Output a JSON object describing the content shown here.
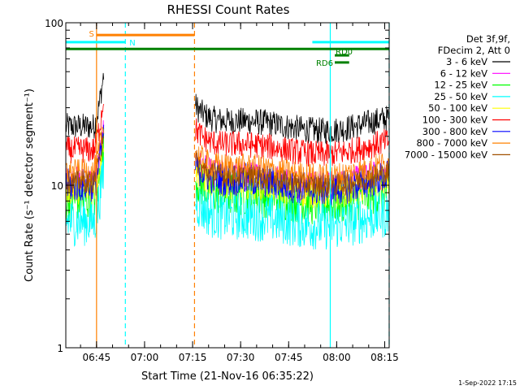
{
  "chart_data": {
    "type": "line",
    "title": "RHESSI Count Rates",
    "xlabel": "Start Time (21-Nov-16 06:35:22)",
    "ylabel": "Count Rate (s⁻¹ detector segment⁻¹)",
    "yscale": "log",
    "ylim": [
      1,
      100
    ],
    "xlim_minutes": [
      0,
      101
    ],
    "x_ticks": [
      {
        "label": "06:45",
        "t": 9.6
      },
      {
        "label": "07:00",
        "t": 24.6
      },
      {
        "label": "07:15",
        "t": 39.6
      },
      {
        "label": "07:30",
        "t": 54.6
      },
      {
        "label": "07:45",
        "t": 69.6
      },
      {
        "label": "08:00",
        "t": 84.6
      },
      {
        "label": "08:15",
        "t": 99.6
      }
    ],
    "y_ticks": [
      {
        "label": "1",
        "v": 1
      },
      {
        "label": "10",
        "v": 10
      },
      {
        "label": "100",
        "v": 100
      }
    ],
    "legend_header": [
      "Det 3f,9f,",
      "FDecim 2, Att 0"
    ],
    "legend_position": "right",
    "series": [
      {
        "name": "3 - 6 keV",
        "color": "#000000",
        "base": 23,
        "amp": 0.12
      },
      {
        "name": "6 - 12 keV",
        "color": "#ff00ff",
        "base": 10.5,
        "amp": 0.14
      },
      {
        "name": "12 - 25 keV",
        "color": "#00ff00",
        "base": 8.2,
        "amp": 0.2
      },
      {
        "name": "25 - 50 keV",
        "color": "#00ffff",
        "base": 6.0,
        "amp": 0.22
      },
      {
        "name": "50 - 100 keV",
        "color": "#ffff00",
        "base": 9.5,
        "amp": 0.14
      },
      {
        "name": "100 - 300 keV",
        "color": "#ff0000",
        "base": 16.5,
        "amp": 0.12
      },
      {
        "name": "300 - 800 keV",
        "color": "#0000ff",
        "base": 10.0,
        "amp": 0.15
      },
      {
        "name": "800 - 7000 keV",
        "color": "#ff8000",
        "base": 12.0,
        "amp": 0.12
      },
      {
        "name": "7000 - 15000 keV",
        "color": "#a05000",
        "base": 10.5,
        "amp": 0.1
      }
    ],
    "data_segments_minutes": [
      [
        0,
        12
      ],
      [
        40.5,
        101
      ]
    ],
    "flags": [
      {
        "label": "S",
        "color": "#ff8000",
        "t_start": 9.6,
        "t_end": 40.2,
        "level": 84
      },
      {
        "label": "N",
        "color": "#00ffff",
        "t_start": 0,
        "t_end": 18.6,
        "level": 76
      },
      {
        "label": "",
        "color": "#008000",
        "t_start": 0,
        "t_end": 101,
        "level": 69
      },
      {
        "label": "",
        "color": "#00ffff",
        "t_start": 77,
        "t_end": 101,
        "level": 76
      },
      {
        "label": "RD0",
        "color": "#008000",
        "t_start": 84,
        "t_end": 88.5,
        "level": 63
      },
      {
        "label": "RD6",
        "color": "#008000",
        "t_start": 84,
        "t_end": 88.5,
        "level": 57
      }
    ],
    "vertical_markers": [
      {
        "t": 9.6,
        "color": "#ff8000",
        "style": "solid"
      },
      {
        "t": 18.6,
        "color": "#00ffff",
        "style": "dashed"
      },
      {
        "t": 40.2,
        "color": "#ff8000",
        "style": "dashed"
      },
      {
        "t": 82.6,
        "color": "#00ffff",
        "style": "solid"
      },
      {
        "t": 101,
        "color": "#00ffff",
        "style": "dashed"
      }
    ],
    "grid": false
  },
  "footer": {
    "date": "1-Sep-2022 17:15"
  }
}
